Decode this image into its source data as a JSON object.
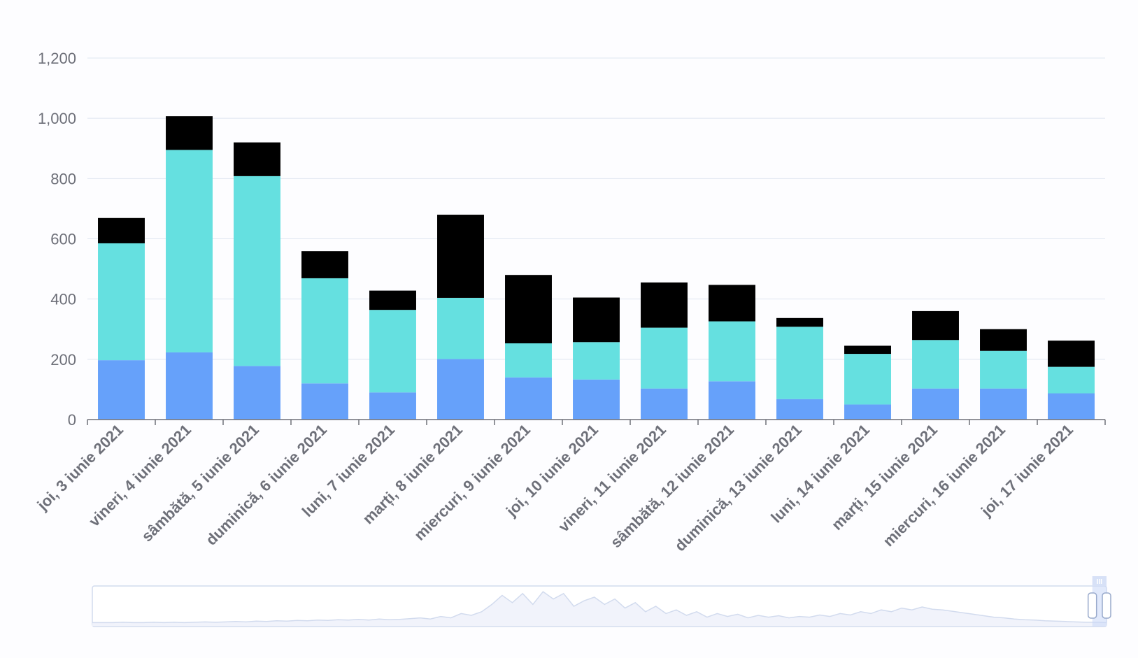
{
  "chart_data": {
    "type": "bar",
    "stacked": true,
    "title": "",
    "xlabel": "",
    "ylabel": "",
    "ylim": [
      0,
      1200
    ],
    "yticks": [
      "0",
      "200",
      "400",
      "600",
      "800",
      "1,000",
      "1,200"
    ],
    "ytick_values": [
      0,
      200,
      400,
      600,
      800,
      1000,
      1200
    ],
    "grid": true,
    "legend": "none",
    "categories": [
      "joi, 3 iunie 2021",
      "vineri, 4 iunie 2021",
      "sâmbătă, 5 iunie 2021",
      "duminică, 6 iunie 2021",
      "luni, 7 iunie 2021",
      "marți, 8 iunie 2021",
      "miercuri, 9 iunie 2021",
      "joi, 10 iunie 2021",
      "vineri, 11 iunie 2021",
      "sâmbătă, 12 iunie 2021",
      "duminică, 13 iunie 2021",
      "luni, 14 iunie 2021",
      "marți, 15 iunie 2021",
      "miercuri, 16 iunie 2021",
      "joi, 17 iunie 2021"
    ],
    "series": [
      {
        "color": "#66a1fa",
        "values": [
          197,
          223,
          178,
          120,
          90,
          201,
          140,
          133,
          103,
          127,
          68,
          50,
          103,
          103,
          87
        ]
      },
      {
        "color": "#65e0e0",
        "values": [
          388,
          672,
          630,
          349,
          274,
          203,
          113,
          124,
          202,
          199,
          240,
          168,
          161,
          125,
          88
        ]
      },
      {
        "color": "#000000",
        "values": [
          84,
          112,
          112,
          90,
          64,
          276,
          227,
          148,
          150,
          121,
          29,
          27,
          96,
          72,
          87
        ]
      }
    ]
  },
  "data_zoom": {
    "range_start_percent": 98.6,
    "range_end_percent": 100,
    "handle_grip_glyph": "III",
    "preview_profile": [
      0.05,
      0.05,
      0.05,
      0.06,
      0.05,
      0.05,
      0.06,
      0.05,
      0.06,
      0.05,
      0.06,
      0.07,
      0.06,
      0.07,
      0.08,
      0.07,
      0.09,
      0.08,
      0.1,
      0.09,
      0.11,
      0.1,
      0.12,
      0.11,
      0.13,
      0.12,
      0.14,
      0.12,
      0.15,
      0.13,
      0.14,
      0.16,
      0.18,
      0.15,
      0.22,
      0.18,
      0.3,
      0.25,
      0.35,
      0.55,
      0.8,
      0.6,
      0.85,
      0.55,
      0.9,
      0.7,
      0.85,
      0.5,
      0.65,
      0.75,
      0.55,
      0.7,
      0.45,
      0.6,
      0.35,
      0.5,
      0.3,
      0.4,
      0.25,
      0.35,
      0.2,
      0.3,
      0.22,
      0.28,
      0.18,
      0.25,
      0.2,
      0.24,
      0.18,
      0.22,
      0.2,
      0.26,
      0.22,
      0.3,
      0.26,
      0.35,
      0.3,
      0.4,
      0.35,
      0.45,
      0.4,
      0.48,
      0.42,
      0.4,
      0.36,
      0.32,
      0.28,
      0.24,
      0.2,
      0.18,
      0.15,
      0.13,
      0.12,
      0.1,
      0.09,
      0.08,
      0.07,
      0.06,
      0.06,
      0.05
    ]
  }
}
